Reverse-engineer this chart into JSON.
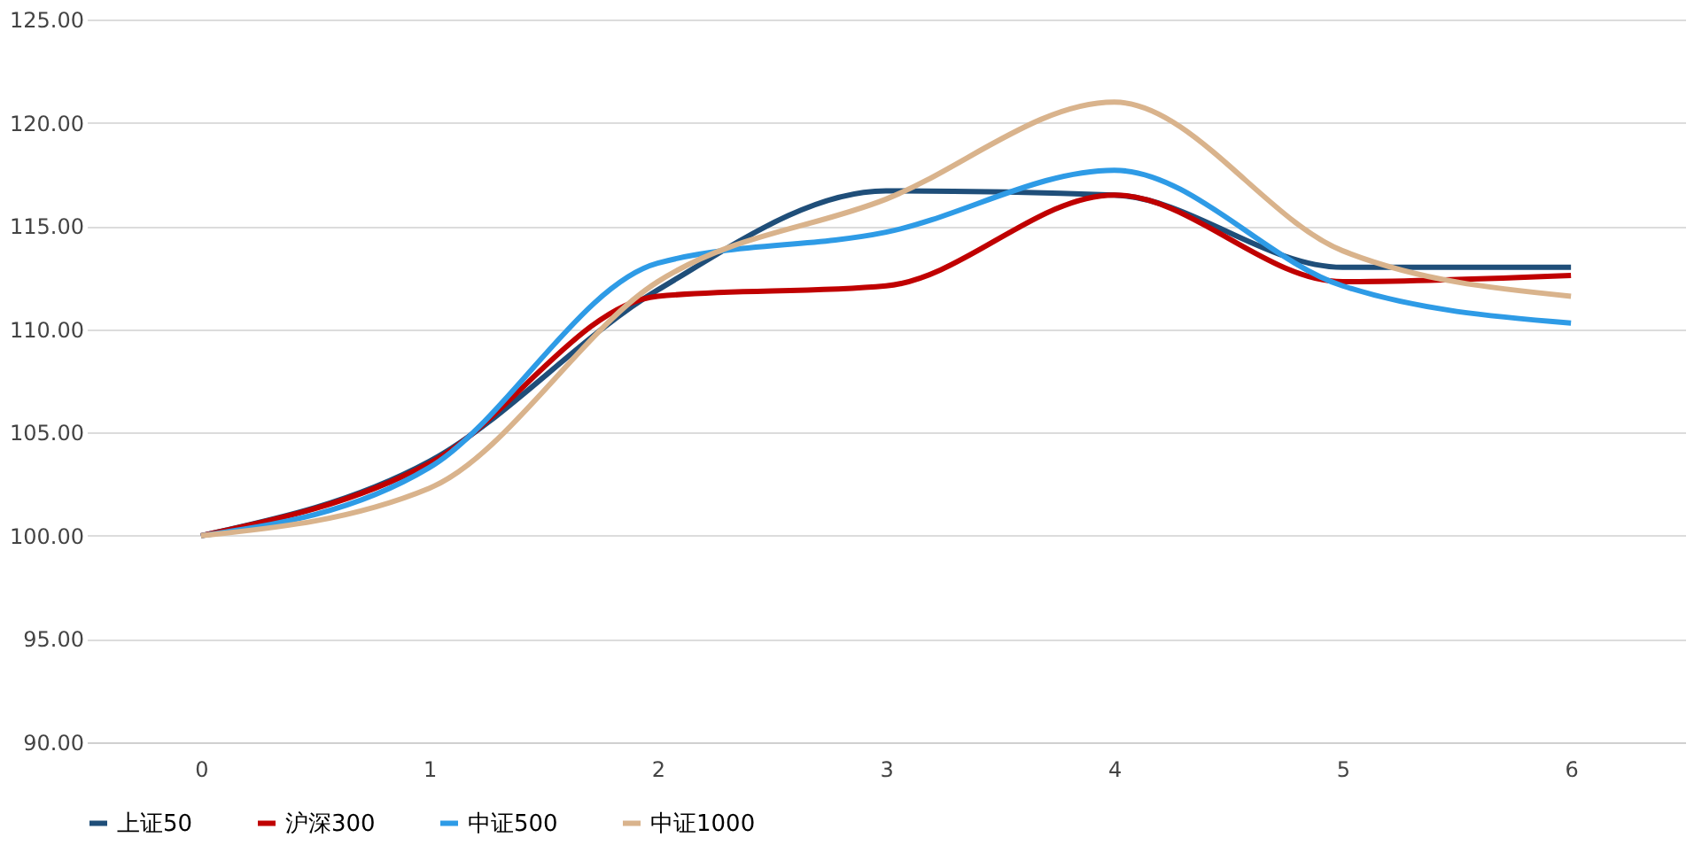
{
  "chart_data": {
    "type": "line",
    "categories": [
      "0",
      "1",
      "2",
      "3",
      "4",
      "5",
      "6"
    ],
    "series": [
      {
        "name": "上证50",
        "color": "#1f4e79",
        "values": [
          100,
          103.6,
          111.9,
          116.7,
          116.5,
          113.0,
          113.0
        ]
      },
      {
        "name": "沪深300",
        "color": "#c00000",
        "values": [
          100,
          103.5,
          111.6,
          112.1,
          116.5,
          112.3,
          112.6
        ]
      },
      {
        "name": "中证500",
        "color": "#2e9be6",
        "values": [
          100,
          103.3,
          113.2,
          114.7,
          117.7,
          112.1,
          110.3
        ]
      },
      {
        "name": "中证1000",
        "color": "#d9b38c",
        "values": [
          100,
          102.3,
          112.3,
          116.3,
          121.0,
          113.8,
          111.6
        ]
      }
    ],
    "ylim": [
      90,
      125
    ],
    "yticks": [
      {
        "value": 90,
        "label": "90.00"
      },
      {
        "value": 95,
        "label": "95.00"
      },
      {
        "value": 100,
        "label": "100.00"
      },
      {
        "value": 105,
        "label": "105.00"
      },
      {
        "value": 110,
        "label": "110.00"
      },
      {
        "value": 115,
        "label": "115.00"
      },
      {
        "value": 120,
        "label": "120.00"
      },
      {
        "value": 125,
        "label": "125.00"
      }
    ],
    "grid": "y",
    "legend": "bottom",
    "marker": "none",
    "line_style": "solid"
  }
}
